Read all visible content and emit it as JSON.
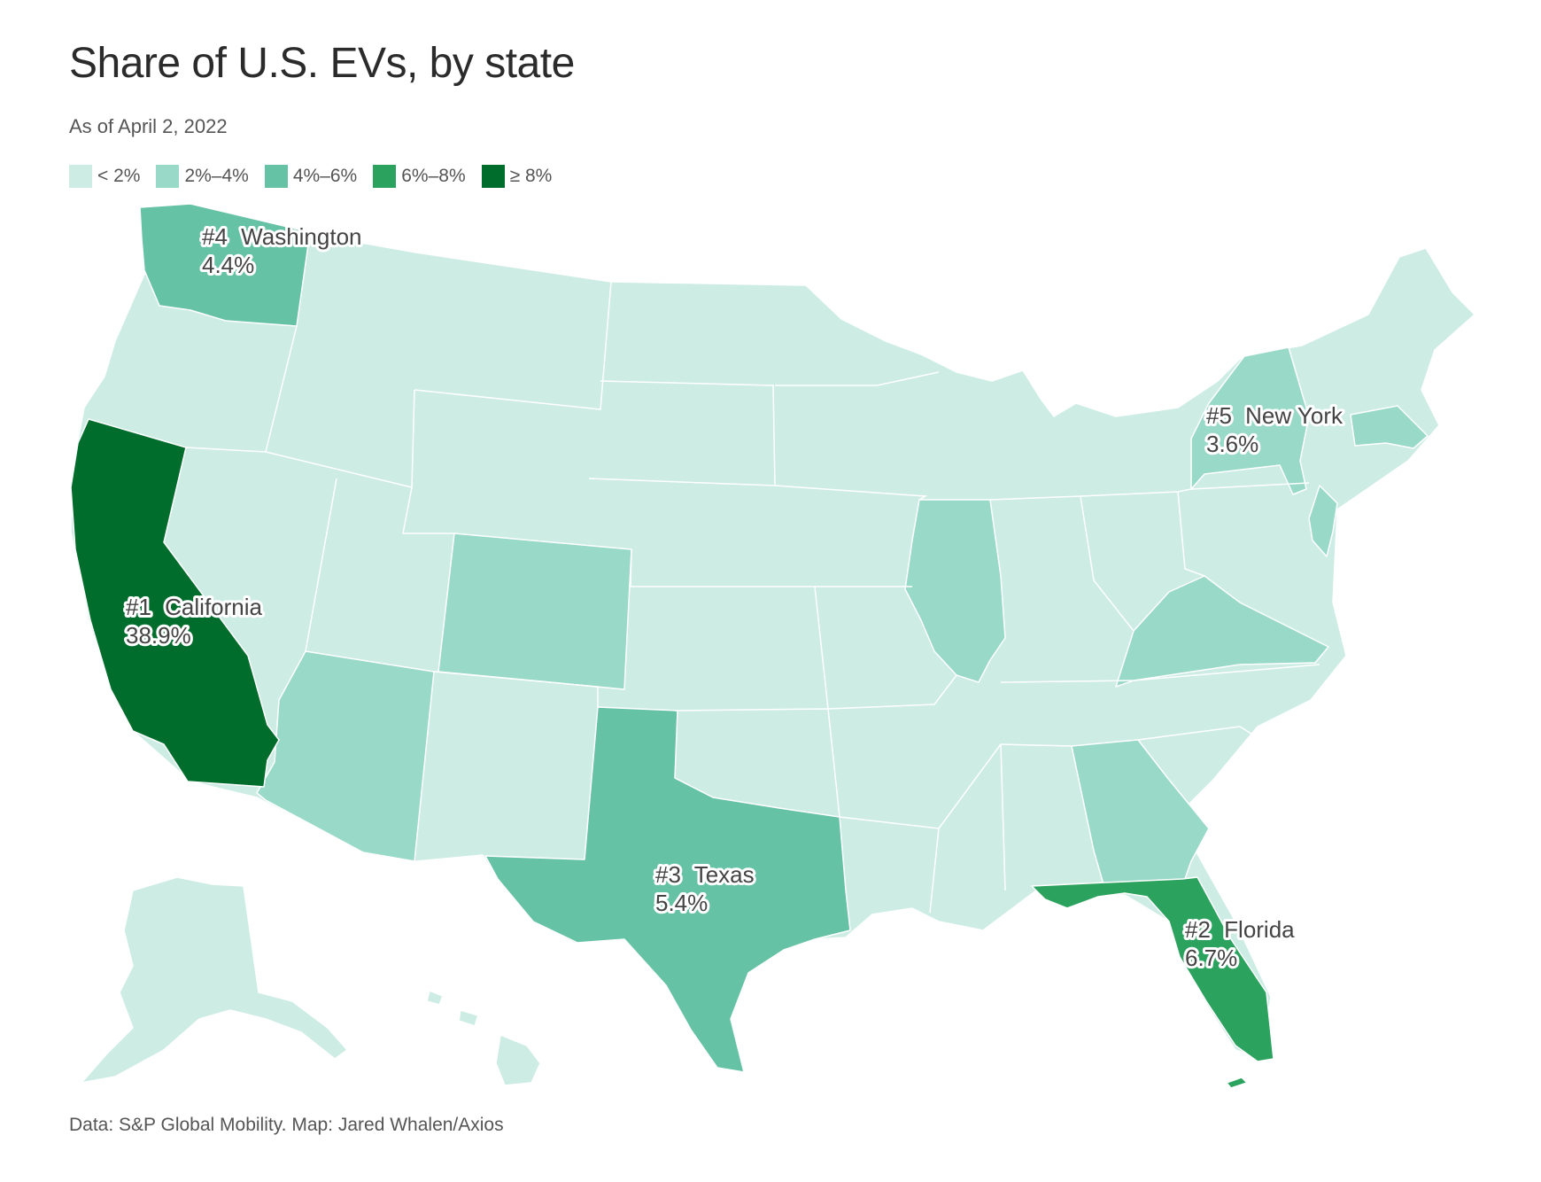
{
  "title": "Share of U.S. EVs, by state",
  "subtitle": "As of April 2, 2022",
  "legend": [
    {
      "label": "< 2%",
      "color": "#cdece4"
    },
    {
      "label": "2%–4%",
      "color": "#99d9c7"
    },
    {
      "label": "4%–6%",
      "color": "#66c2a4"
    },
    {
      "label": "6%–8%",
      "color": "#2ca25f"
    },
    {
      "label": "≥ 8%",
      "color": "#006d2c"
    }
  ],
  "labels": {
    "washington": {
      "rank": "#4",
      "name": "Washington",
      "value": "4.4%"
    },
    "new_york": {
      "rank": "#5",
      "name": "New York",
      "value": "3.6%"
    },
    "california": {
      "rank": "#1",
      "name": "California",
      "value": "38.9%"
    },
    "texas": {
      "rank": "#3",
      "name": "Texas",
      "value": "5.4%"
    },
    "florida": {
      "rank": "#2",
      "name": "Florida",
      "value": "6.7%"
    }
  },
  "source": "Data: S&P Global Mobility. Map: Jared Whalen/Axios",
  "chart_data": {
    "type": "choropleth",
    "bins": [
      "< 2%",
      "2%–4%",
      "4%–6%",
      "6%–8%",
      "≥ 8%"
    ],
    "states": [
      {
        "state": "California",
        "rank": 1,
        "share_pct": 38.9,
        "bin": "≥ 8%"
      },
      {
        "state": "Florida",
        "rank": 2,
        "share_pct": 6.7,
        "bin": "6%–8%"
      },
      {
        "state": "Texas",
        "rank": 3,
        "share_pct": 5.4,
        "bin": "4%–6%"
      },
      {
        "state": "Washington",
        "rank": 4,
        "share_pct": 4.4,
        "bin": "4%–6%"
      },
      {
        "state": "New York",
        "rank": 5,
        "share_pct": 3.6,
        "bin": "2%–4%"
      },
      {
        "state": "Arizona",
        "bin": "2%–4%"
      },
      {
        "state": "Colorado",
        "bin": "2%–4%"
      },
      {
        "state": "Illinois",
        "bin": "2%–4%"
      },
      {
        "state": "Georgia",
        "bin": "2%–4%"
      },
      {
        "state": "Virginia",
        "bin": "2%–4%"
      },
      {
        "state": "New Jersey",
        "bin": "2%–4%"
      },
      {
        "state": "Massachusetts",
        "bin": "2%–4%"
      },
      {
        "state": "Other states",
        "bin": "< 2%"
      }
    ]
  }
}
